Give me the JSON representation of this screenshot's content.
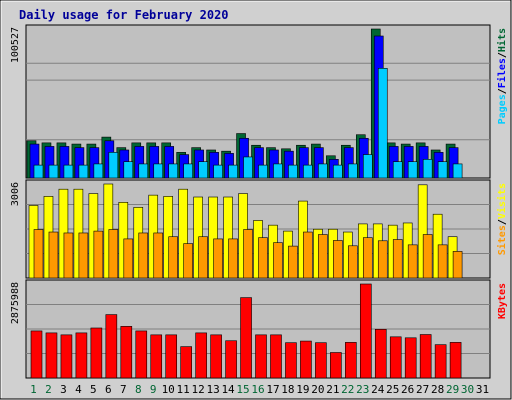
{
  "chart_data": {
    "type": "bar",
    "title": "Daily usage for February 2020",
    "categories": [
      "1",
      "2",
      "3",
      "4",
      "5",
      "6",
      "7",
      "8",
      "9",
      "10",
      "11",
      "12",
      "13",
      "14",
      "15",
      "16",
      "17",
      "18",
      "19",
      "20",
      "21",
      "22",
      "23",
      "24",
      "25",
      "26",
      "27",
      "28",
      "29",
      "30",
      "31"
    ],
    "weekend_days": [
      1,
      2,
      8,
      9,
      15,
      16,
      22,
      23,
      29,
      30
    ],
    "colors": {
      "title": "#000099",
      "hits": "#006633",
      "files": "#0000ff",
      "pages": "#00ccff",
      "visits": "#ffff00",
      "sites": "#ff9900",
      "kbytes": "#ff0000",
      "weekend_label": "#006633",
      "weekday_label": "#000000",
      "plot_bg": "#c0c0c0",
      "frame_bg": "#d0d0d0"
    },
    "panels": [
      {
        "id": "hits-panel",
        "max_label": "100527",
        "ylim": [
          0,
          100527
        ],
        "right_label": [
          {
            "text": "Pages",
            "color": "#00ccff"
          },
          {
            "text": "/",
            "color": "#000000"
          },
          {
            "text": "Files",
            "color": "#0000ff"
          },
          {
            "text": "/",
            "color": "#000000"
          },
          {
            "text": "Hits",
            "color": "#006633"
          }
        ],
        "series": [
          {
            "name": "Hits",
            "color": "#006633",
            "values": [
              25100,
              23700,
              23700,
              22900,
              22900,
              27600,
              20500,
              23700,
              23700,
              23700,
              17300,
              20500,
              18900,
              18100,
              30000,
              22100,
              20500,
              19700,
              22100,
              22900,
              15000,
              22100,
              29200,
              100527,
              23700,
              22900,
              23700,
              18900,
              22900,
              null,
              null
            ]
          },
          {
            "name": "Files",
            "color": "#0000ff",
            "values": [
              22900,
              21300,
              21300,
              20500,
              20500,
              25100,
              18900,
              21300,
              21300,
              21300,
              15800,
              18900,
              17300,
              16600,
              26800,
              20500,
              18900,
              18100,
              20500,
              20500,
              12600,
              20500,
              26800,
              95800,
              21300,
              21300,
              21300,
              17300,
              20500,
              null,
              null
            ]
          },
          {
            "name": "Pages",
            "color": "#00ccff",
            "values": [
              8700,
              8700,
              8700,
              8700,
              9500,
              17300,
              11000,
              9500,
              9500,
              9500,
              9500,
              11000,
              8700,
              8700,
              14200,
              8700,
              9500,
              8700,
              8700,
              9500,
              8700,
              9500,
              15800,
              74000,
              11000,
              11000,
              12600,
              11000,
              9500,
              null,
              null
            ]
          }
        ]
      },
      {
        "id": "visits-panel",
        "max_label": "3006",
        "ylim": [
          0,
          3006
        ],
        "right_label": [
          {
            "text": "Sites",
            "color": "#ff9900"
          },
          {
            "text": "/",
            "color": "#000000"
          },
          {
            "text": "Visits",
            "color": "#ffff00"
          }
        ],
        "series": [
          {
            "name": "Visits",
            "color": "#ffff00",
            "values": [
              2320,
              2610,
              2840,
              2840,
              2700,
              3006,
              2420,
              2260,
              2650,
              2610,
              2840,
              2590,
              2590,
              2590,
              2700,
              1840,
              1690,
              1500,
              2460,
              1560,
              1560,
              1470,
              1730,
              1730,
              1690,
              1760,
              2980,
              2040,
              1320,
              null,
              null
            ]
          },
          {
            "name": "Sites",
            "color": "#ff9900",
            "values": [
              1550,
              1470,
              1440,
              1440,
              1500,
              1550,
              1250,
              1440,
              1440,
              1320,
              1100,
              1320,
              1250,
              1250,
              1550,
              1290,
              1130,
              1020,
              1470,
              1390,
              1200,
              1030,
              1290,
              1190,
              1230,
              1060,
              1390,
              1060,
              850,
              null,
              null
            ]
          }
        ]
      },
      {
        "id": "kbytes-panel",
        "max_label": "2875988",
        "ylim": [
          0,
          2875988
        ],
        "right_label": [
          {
            "text": "KBytes",
            "color": "#ff0000"
          }
        ],
        "series": [
          {
            "name": "KBytes",
            "color": "#ff0000",
            "values": [
              1440000,
              1380000,
              1320000,
              1380000,
              1530000,
              1940000,
              1580000,
              1440000,
              1320000,
              1320000,
              960000,
              1380000,
              1320000,
              1140000,
              2460000,
              1320000,
              1320000,
              1080000,
              1130000,
              1080000,
              780000,
              1090000,
              2875988,
              1490000,
              1260000,
              1230000,
              1330000,
              1020000,
              1090000,
              null,
              null
            ]
          }
        ]
      }
    ]
  }
}
